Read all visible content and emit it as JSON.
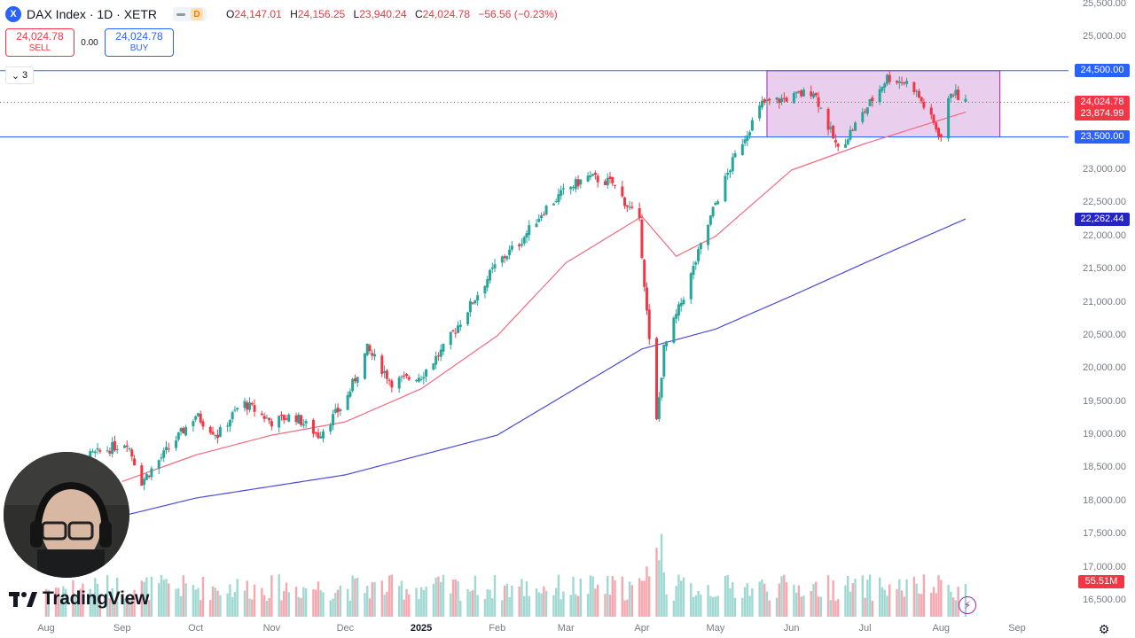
{
  "header": {
    "symbol": "DAX Index · 1D · XETR",
    "symbol_icon": "X",
    "interval_badge": "D",
    "ohlc": [
      {
        "label": "O",
        "value": "24,147.01"
      },
      {
        "label": "H",
        "value": "24,156.25"
      },
      {
        "label": "L",
        "value": "23,940.24"
      },
      {
        "label": "C",
        "value": "24,024.78"
      }
    ],
    "change": "−56.56 (−0.23%)"
  },
  "trade": {
    "sell_price": "24,024.78",
    "sell_label": "SELL",
    "spread": "0.00",
    "buy_price": "24,024.78",
    "buy_label": "BUY"
  },
  "indicators_collapse": {
    "count": "3"
  },
  "branding": {
    "wordmark": "TradingView"
  },
  "colors": {
    "up": "#26a69a",
    "down": "#f23645",
    "ma_fast": "#f26b80",
    "ma_slow": "#4b4bd1",
    "horizontal_line": "#2962ff",
    "range_box_fill": "#e1bee7",
    "range_box_border": "#9c27b0",
    "close_label": "#f23645",
    "ma_fast_label": "#f23645",
    "ma_slow_label": "#2525c4",
    "hline_label": "#2962ff",
    "volume_label": "#f23645"
  },
  "icons": {
    "settings": "gear-icon",
    "alerts": "lightning-icon",
    "collapse": "chevron-down-icon"
  },
  "chart_data": {
    "type": "candlestick",
    "title": "DAX Index · 1D · XETR",
    "ylim": [
      16300,
      25600
    ],
    "y_ticks": [
      "25,500.00",
      "25,000.00",
      "24,500.00",
      "24,000.00",
      "23,500.00",
      "23,000.00",
      "22,500.00",
      "22,000.00",
      "21,500.00",
      "21,000.00",
      "20,500.00",
      "20,000.00",
      "19,500.00",
      "19,000.00",
      "18,500.00",
      "18,000.00",
      "17,500.00",
      "17,000.00",
      "16,500.00"
    ],
    "y_tick_values": [
      25500,
      25000,
      24500,
      24000,
      23500,
      23000,
      22500,
      22000,
      21500,
      21000,
      20500,
      20000,
      19500,
      19000,
      18500,
      18000,
      17500,
      17000,
      16500
    ],
    "x_ticks": [
      "Aug",
      "Sep",
      "Oct",
      "Nov",
      "Dec",
      "2025",
      "Feb",
      "Mar",
      "Apr",
      "May",
      "Jun",
      "Jul",
      "Aug",
      "Sep"
    ],
    "x_tick_dates": [
      "2024-08-01",
      "2024-09-01",
      "2024-10-01",
      "2024-11-01",
      "2024-12-01",
      "2025-01-01",
      "2025-02-01",
      "2025-03-01",
      "2025-04-01",
      "2025-05-01",
      "2025-06-01",
      "2025-07-01",
      "2025-08-01",
      "2025-09-01"
    ],
    "series": [
      {
        "name": "DAX Index",
        "kind": "candles",
        "approx_path": [
          {
            "date": "2024-08-01",
            "close": 18400
          },
          {
            "date": "2024-08-20",
            "close": 18700
          },
          {
            "date": "2024-09-03",
            "close": 18900
          },
          {
            "date": "2024-09-09",
            "close": 18300
          },
          {
            "date": "2024-09-20",
            "close": 18800
          },
          {
            "date": "2024-10-01",
            "close": 19300
          },
          {
            "date": "2024-10-10",
            "close": 19000
          },
          {
            "date": "2024-10-20",
            "close": 19500
          },
          {
            "date": "2024-11-01",
            "close": 19200
          },
          {
            "date": "2024-11-10",
            "close": 19300
          },
          {
            "date": "2024-11-20",
            "close": 19000
          },
          {
            "date": "2024-12-01",
            "close": 19500
          },
          {
            "date": "2024-12-10",
            "close": 20300
          },
          {
            "date": "2024-12-20",
            "close": 19800
          },
          {
            "date": "2025-01-01",
            "close": 19900
          },
          {
            "date": "2025-01-10",
            "close": 20300
          },
          {
            "date": "2025-01-20",
            "close": 20900
          },
          {
            "date": "2025-02-01",
            "close": 21600
          },
          {
            "date": "2025-02-10",
            "close": 21900
          },
          {
            "date": "2025-02-20",
            "close": 22400
          },
          {
            "date": "2025-03-01",
            "close": 22700
          },
          {
            "date": "2025-03-10",
            "close": 22900
          },
          {
            "date": "2025-03-20",
            "close": 22800
          },
          {
            "date": "2025-03-31",
            "close": 22200
          },
          {
            "date": "2025-04-04",
            "close": 20400
          },
          {
            "date": "2025-04-07",
            "close": 19200
          },
          {
            "date": "2025-04-10",
            "close": 20300
          },
          {
            "date": "2025-04-20",
            "close": 21300
          },
          {
            "date": "2025-05-01",
            "close": 22500
          },
          {
            "date": "2025-05-10",
            "close": 23300
          },
          {
            "date": "2025-05-20",
            "close": 24000
          },
          {
            "date": "2025-06-01",
            "close": 24100
          },
          {
            "date": "2025-06-10",
            "close": 24200
          },
          {
            "date": "2025-06-20",
            "close": 23300
          },
          {
            "date": "2025-07-01",
            "close": 23900
          },
          {
            "date": "2025-07-10",
            "close": 24400
          },
          {
            "date": "2025-07-20",
            "close": 24300
          },
          {
            "date": "2025-08-01",
            "close": 23500
          },
          {
            "date": "2025-08-05",
            "close": 24200
          },
          {
            "date": "2025-08-11",
            "close": 24024.78
          }
        ]
      },
      {
        "name": "MA fast",
        "kind": "line",
        "last_value": "23,874.99",
        "approx_path": [
          {
            "date": "2024-09-01",
            "value": 18300
          },
          {
            "date": "2024-10-01",
            "value": 18700
          },
          {
            "date": "2024-11-01",
            "value": 19000
          },
          {
            "date": "2024-12-01",
            "value": 19200
          },
          {
            "date": "2025-01-01",
            "value": 19700
          },
          {
            "date": "2025-02-01",
            "value": 20500
          },
          {
            "date": "2025-03-01",
            "value": 21600
          },
          {
            "date": "2025-04-01",
            "value": 22300
          },
          {
            "date": "2025-04-15",
            "value": 21700
          },
          {
            "date": "2025-05-01",
            "value": 22000
          },
          {
            "date": "2025-06-01",
            "value": 23000
          },
          {
            "date": "2025-07-01",
            "value": 23400
          },
          {
            "date": "2025-08-11",
            "value": 23875
          }
        ]
      },
      {
        "name": "MA slow",
        "kind": "line",
        "last_value": "22,262.44",
        "approx_path": [
          {
            "date": "2024-08-01",
            "value": 17500
          },
          {
            "date": "2024-10-01",
            "value": 18050
          },
          {
            "date": "2024-12-01",
            "value": 18400
          },
          {
            "date": "2025-02-01",
            "value": 19000
          },
          {
            "date": "2025-04-01",
            "value": 20300
          },
          {
            "date": "2025-05-01",
            "value": 20600
          },
          {
            "date": "2025-06-01",
            "value": 21100
          },
          {
            "date": "2025-07-01",
            "value": 21600
          },
          {
            "date": "2025-08-11",
            "value": 22262.44
          }
        ]
      }
    ],
    "horizontal_lines": [
      {
        "value": 24500,
        "label": "24,500.00"
      },
      {
        "value": 23500,
        "label": "23,500.00"
      }
    ],
    "range_box": {
      "start": "2025-05-22",
      "end": "2025-08-25",
      "top": 24500,
      "bottom": 23500
    },
    "last_close": {
      "value": 24024.78,
      "label": "24,024.78"
    },
    "volume": {
      "last_label": "55.51M",
      "note": "volume histogram at bottom, spike in early April 2025"
    }
  }
}
